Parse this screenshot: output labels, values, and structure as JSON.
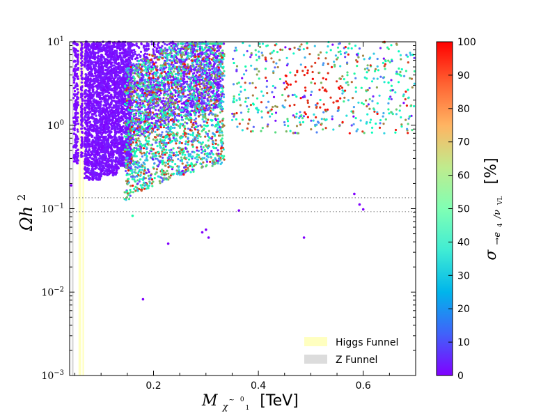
{
  "chart_data": {
    "type": "scatter",
    "title": "",
    "xlabel": {
      "math": "M",
      "sub_base": "χ",
      "sub_accent": "~",
      "sub_sup": "0",
      "sub_sub": "1",
      "unit": "[TeV]"
    },
    "ylabel": {
      "main": "Ωh",
      "sup": "2"
    },
    "xlim": [
      0.04,
      0.7
    ],
    "ylim": [
      0.001,
      10
    ],
    "yscale": "log",
    "x_ticks": [
      {
        "value": 0.2,
        "label": "0.2"
      },
      {
        "value": 0.4,
        "label": "0.4"
      },
      {
        "value": 0.6,
        "label": "0.6"
      }
    ],
    "y_ticks": [
      {
        "value": 0.001,
        "base": "10",
        "exp": "−3"
      },
      {
        "value": 0.01,
        "base": "10",
        "exp": "−2"
      },
      {
        "value": 0.1,
        "base": "10",
        "exp": "−1"
      },
      {
        "value": 1,
        "base": "10",
        "exp": "0"
      },
      {
        "value": 10,
        "base": "10",
        "exp": "1"
      }
    ],
    "reference_lines": [
      {
        "y": 0.135,
        "style": "dotted",
        "color": "#888888"
      },
      {
        "y": 0.092,
        "style": "dotted",
        "color": "#888888"
      }
    ],
    "bands": [
      {
        "name": "Higgs Funnel",
        "x": [
          0.057,
          0.062
        ],
        "color": "#ffffc0"
      },
      {
        "name": "Higgs Funnel",
        "x": [
          0.0645,
          0.0675
        ],
        "color": "#ffffc0"
      },
      {
        "name": "Z Funnel",
        "x": [
          0.044,
          0.0475
        ],
        "color": "#dcdcdc"
      }
    ],
    "legend": {
      "placement": "lower-right",
      "entries": [
        {
          "label": "Higgs Funnel",
          "color": "#ffffc0"
        },
        {
          "label": "Z Funnel",
          "color": "#dcdcdc"
        }
      ]
    },
    "colorbar": {
      "range": [
        0,
        100
      ],
      "ticks": [
        "0",
        "10",
        "20",
        "30",
        "40",
        "50",
        "60",
        "70",
        "80",
        "90",
        "100"
      ],
      "label": {
        "sigma": "σ",
        "sub": "→e",
        "sub_sub": "4",
        "slash": "/ν",
        "slash_sub": "VL",
        "unit": "[%]"
      },
      "colormap": "rainbow"
    },
    "points_summary": {
      "description_ranges": [
        {
          "x": [
            0.07,
            0.15
          ],
          "y": [
            0.2,
            10
          ],
          "c": [
            0,
            5
          ],
          "density": "dense"
        },
        {
          "x": [
            0.15,
            0.33
          ],
          "y": [
            0.1,
            10
          ],
          "c": [
            0,
            100
          ],
          "density": "dense"
        },
        {
          "x": [
            0.35,
            0.7
          ],
          "y": [
            0.4,
            10
          ],
          "c": [
            0,
            100
          ],
          "density": "sparse"
        }
      ]
    },
    "highlight_points": [
      {
        "x": 0.18,
        "y": 0.0082,
        "c": 0
      },
      {
        "x": 0.228,
        "y": 0.038,
        "c": 0
      },
      {
        "x": 0.293,
        "y": 0.052,
        "c": 0
      },
      {
        "x": 0.3,
        "y": 0.056,
        "c": 0
      },
      {
        "x": 0.305,
        "y": 0.045,
        "c": 0
      },
      {
        "x": 0.487,
        "y": 0.045,
        "c": 0
      },
      {
        "x": 0.363,
        "y": 0.095,
        "c": 0
      },
      {
        "x": 0.593,
        "y": 0.112,
        "c": 0
      },
      {
        "x": 0.6,
        "y": 0.098,
        "c": 0
      },
      {
        "x": 0.583,
        "y": 0.15,
        "c": 0
      },
      {
        "x": 0.043,
        "y": 0.19,
        "c": 0
      },
      {
        "x": 0.16,
        "y": 0.082,
        "c": 55
      }
    ]
  }
}
